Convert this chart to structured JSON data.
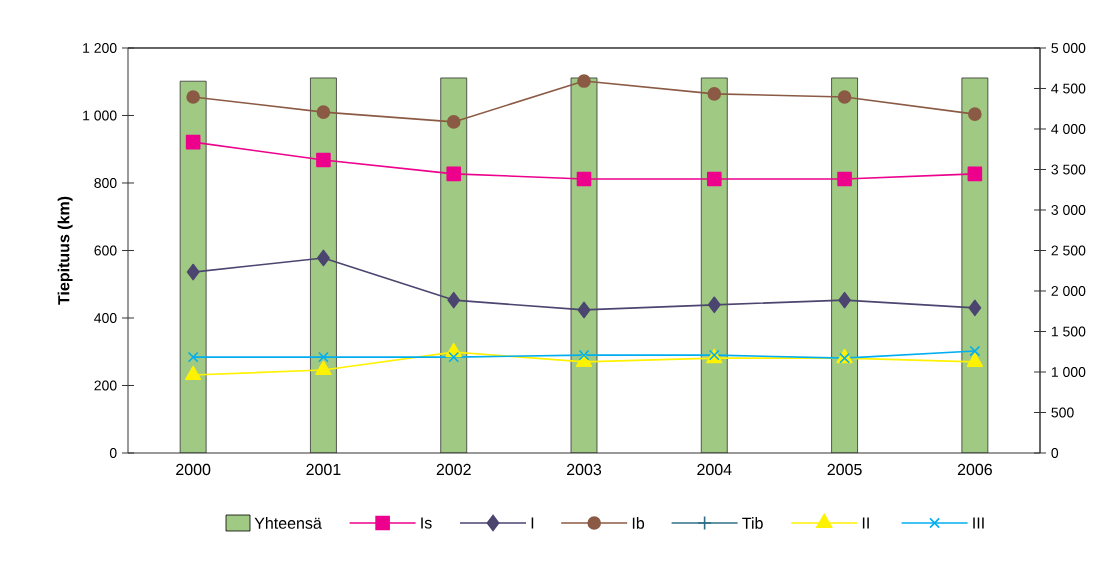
{
  "chart_data": {
    "type": "line",
    "ylabel": "Tiepituus (km)",
    "categories": [
      "2000",
      "2001",
      "2002",
      "2003",
      "2004",
      "2005",
      "2006"
    ],
    "ylim": [
      0,
      1200
    ],
    "yticks": [
      0,
      200,
      400,
      600,
      800,
      {
        "value": 1000,
        "label": "1 000"
      },
      {
        "value": 1200,
        "label": "1 200"
      }
    ],
    "y2lim": [
      0,
      5000
    ],
    "y2ticks": [
      0,
      500,
      {
        "value": 1000,
        "label": "1 000"
      },
      {
        "value": 1500,
        "label": "1 500"
      },
      {
        "value": 2000,
        "label": "2 000"
      },
      {
        "value": 2500,
        "label": "2 500"
      },
      {
        "value": 3000,
        "label": "3 000"
      },
      {
        "value": 3500,
        "label": "3 500"
      },
      {
        "value": 4000,
        "label": "4 000"
      },
      {
        "value": 4500,
        "label": "4 500"
      },
      {
        "value": 5000,
        "label": "5 000"
      }
    ],
    "legend": "bottom",
    "grid": false,
    "series": [
      {
        "name": "Yhteensä",
        "type": "bar",
        "axis": "y2",
        "color": "#a0c983",
        "values": [
          4590,
          4630,
          4630,
          4630,
          4630,
          4630,
          4630
        ]
      },
      {
        "name": "Is",
        "marker": "square",
        "color": "#ec008c",
        "values": [
          921,
          868,
          827,
          812,
          812,
          812,
          827
        ]
      },
      {
        "name": "I",
        "marker": "diamond",
        "color": "#4b4570",
        "values": [
          536,
          578,
          453,
          424,
          439,
          453,
          430
        ]
      },
      {
        "name": "Ib",
        "marker": "circle",
        "color": "#8b5a44",
        "values": [
          1055,
          1010,
          981,
          1102,
          1064,
          1055,
          1004
        ]
      },
      {
        "name": "Tib",
        "marker": "plus",
        "color": "#2f6f86",
        "values": [
          null,
          null,
          null,
          null,
          null,
          null,
          null
        ]
      },
      {
        "name": "II",
        "marker": "triangle",
        "color": "#fff200",
        "values": [
          231,
          246,
          299,
          270,
          281,
          281,
          270
        ]
      },
      {
        "name": "III",
        "marker": "cross",
        "color": "#00aeef",
        "values": [
          284,
          284,
          284,
          290,
          290,
          281,
          302
        ]
      }
    ]
  }
}
